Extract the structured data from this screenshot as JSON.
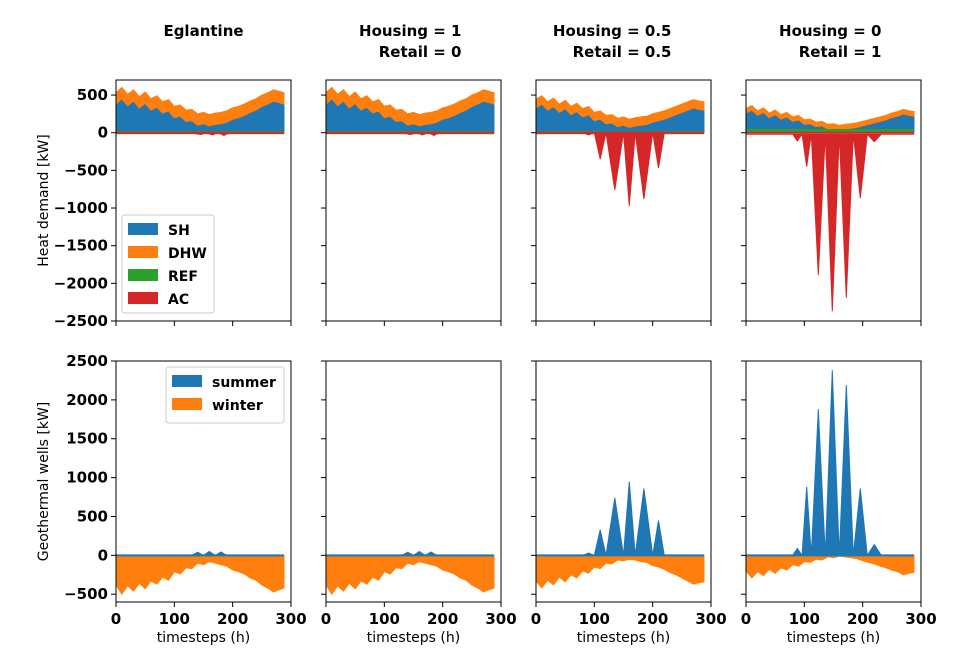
{
  "colors": {
    "SH": "#1f77b4",
    "DHW": "#ff7f0e",
    "REF": "#2ca02c",
    "AC": "#d62728",
    "summer": "#1f77b4",
    "winter": "#ff7f0e"
  },
  "chart_data": [
    {
      "type": "area",
      "row": "heat_demand",
      "title_lines": [
        "Eglantine"
      ],
      "ylabel": "Heat demand [kW]",
      "xlabel": "",
      "xlim": [
        0,
        300
      ],
      "ylim": [
        -2500,
        700
      ],
      "yticks": [
        500,
        0,
        -500,
        -1000,
        -1500,
        -2000,
        -2500
      ],
      "xticks": [
        0,
        100,
        200,
        300
      ],
      "legend": {
        "position": "lower-left",
        "entries": [
          "SH",
          "DHW",
          "REF",
          "AC"
        ]
      },
      "series": [
        {
          "name": "SH",
          "x": [
            0,
            10,
            20,
            30,
            40,
            50,
            60,
            70,
            80,
            90,
            100,
            110,
            120,
            130,
            140,
            150,
            160,
            170,
            180,
            190,
            200,
            210,
            220,
            230,
            240,
            250,
            260,
            270,
            280,
            288
          ],
          "y": [
            380,
            450,
            360,
            420,
            330,
            390,
            300,
            340,
            260,
            290,
            200,
            220,
            150,
            160,
            100,
            120,
            90,
            110,
            120,
            140,
            180,
            200,
            230,
            270,
            300,
            350,
            380,
            420,
            400,
            380
          ]
        },
        {
          "name": "DHW",
          "x": [
            0,
            288
          ],
          "y": [
            150,
            150
          ]
        },
        {
          "name": "REF",
          "x": [
            0,
            288
          ],
          "y": [
            0,
            0
          ]
        },
        {
          "name": "AC",
          "x": [
            0,
            130,
            145,
            155,
            165,
            175,
            185,
            195,
            288
          ],
          "y": [
            0,
            0,
            -25,
            0,
            -30,
            0,
            -35,
            0,
            0
          ]
        }
      ]
    },
    {
      "type": "area",
      "row": "heat_demand",
      "title_lines": [
        "Housing = 1",
        "Retail = 0"
      ],
      "xlim": [
        0,
        300
      ],
      "ylim": [
        -2500,
        700
      ],
      "xticks": [
        0,
        100,
        200,
        300
      ],
      "series": [
        {
          "name": "SH",
          "x": [
            0,
            10,
            20,
            30,
            40,
            50,
            60,
            70,
            80,
            90,
            100,
            110,
            120,
            130,
            140,
            150,
            160,
            170,
            180,
            190,
            200,
            210,
            220,
            230,
            240,
            250,
            260,
            270,
            280,
            288
          ],
          "y": [
            380,
            450,
            360,
            420,
            330,
            390,
            300,
            340,
            260,
            290,
            200,
            220,
            150,
            160,
            100,
            120,
            90,
            110,
            120,
            140,
            180,
            200,
            230,
            270,
            300,
            350,
            380,
            420,
            400,
            380
          ]
        },
        {
          "name": "DHW",
          "x": [
            0,
            288
          ],
          "y": [
            150,
            150
          ]
        },
        {
          "name": "REF",
          "x": [
            0,
            288
          ],
          "y": [
            0,
            0
          ]
        },
        {
          "name": "AC",
          "x": [
            0,
            130,
            145,
            155,
            165,
            175,
            185,
            195,
            288
          ],
          "y": [
            0,
            0,
            -25,
            0,
            -30,
            0,
            -35,
            0,
            0
          ]
        }
      ]
    },
    {
      "type": "area",
      "row": "heat_demand",
      "title_lines": [
        "Housing = 0.5",
        "Retail = 0.5"
      ],
      "xlim": [
        0,
        300
      ],
      "ylim": [
        -2500,
        700
      ],
      "xticks": [
        0,
        100,
        200,
        300
      ],
      "series": [
        {
          "name": "SH",
          "x": [
            0,
            10,
            20,
            30,
            40,
            50,
            60,
            70,
            80,
            90,
            100,
            110,
            120,
            130,
            140,
            150,
            160,
            170,
            180,
            190,
            200,
            210,
            220,
            230,
            240,
            250,
            260,
            270,
            280,
            288
          ],
          "y": [
            330,
            380,
            300,
            350,
            270,
            320,
            240,
            280,
            210,
            240,
            160,
            180,
            120,
            130,
            80,
            100,
            70,
            90,
            100,
            110,
            140,
            160,
            180,
            210,
            240,
            270,
            300,
            330,
            310,
            300
          ]
        },
        {
          "name": "DHW",
          "x": [
            0,
            288
          ],
          "y": [
            110,
            110
          ]
        },
        {
          "name": "REF",
          "x": [
            0,
            288
          ],
          "y": [
            0,
            0
          ]
        },
        {
          "name": "AC",
          "x": [
            0,
            80,
            90,
            100,
            110,
            120,
            135,
            150,
            160,
            170,
            185,
            200,
            210,
            220,
            240,
            288
          ],
          "y": [
            0,
            0,
            -30,
            0,
            -350,
            0,
            -760,
            0,
            -970,
            0,
            -880,
            0,
            -470,
            0,
            0,
            0
          ]
        }
      ]
    },
    {
      "type": "area",
      "row": "heat_demand",
      "title_lines": [
        "Housing = 0",
        "Retail = 1"
      ],
      "xlim": [
        0,
        300
      ],
      "ylim": [
        -2500,
        700
      ],
      "xticks": [
        0,
        100,
        200,
        300
      ],
      "series": [
        {
          "name": "SH",
          "x": [
            0,
            10,
            20,
            30,
            40,
            50,
            60,
            70,
            80,
            90,
            100,
            110,
            120,
            130,
            140,
            150,
            160,
            170,
            180,
            190,
            200,
            210,
            220,
            230,
            240,
            250,
            260,
            270,
            280,
            288
          ],
          "y": [
            260,
            300,
            230,
            270,
            200,
            240,
            180,
            210,
            150,
            170,
            110,
            120,
            80,
            90,
            50,
            60,
            40,
            50,
            60,
            70,
            90,
            110,
            130,
            150,
            170,
            200,
            220,
            250,
            230,
            220
          ]
        },
        {
          "name": "DHW",
          "x": [
            0,
            288
          ],
          "y": [
            60,
            60
          ]
        },
        {
          "name": "REF",
          "x": [
            0,
            288
          ],
          "y": [
            30,
            30
          ]
        },
        {
          "name": "AC",
          "x": [
            0,
            80,
            88,
            96,
            104,
            112,
            124,
            136,
            148,
            160,
            172,
            184,
            196,
            208,
            220,
            232,
            240,
            288
          ],
          "y": [
            -20,
            -20,
            -110,
            -20,
            -450,
            -20,
            -1890,
            -20,
            -2370,
            -20,
            -2190,
            -20,
            -870,
            -20,
            -120,
            -20,
            -20,
            -20
          ]
        }
      ]
    },
    {
      "type": "area",
      "row": "geothermal",
      "ylabel": "Geothermal wells [kW]",
      "xlabel": "timesteps (h)",
      "xlim": [
        0,
        300
      ],
      "ylim": [
        -600,
        2500
      ],
      "yticks": [
        2500,
        2000,
        1500,
        1000,
        500,
        0,
        -500
      ],
      "xticks": [
        0,
        100,
        200,
        300
      ],
      "legend": {
        "position": "upper-right",
        "entries": [
          "summer",
          "winter"
        ]
      },
      "series": [
        {
          "name": "summer",
          "x": [
            0,
            130,
            140,
            150,
            160,
            170,
            180,
            190,
            288
          ],
          "y": [
            0,
            0,
            40,
            0,
            50,
            0,
            45,
            0,
            0
          ]
        },
        {
          "name": "winter",
          "x": [
            0,
            10,
            20,
            30,
            40,
            50,
            60,
            70,
            80,
            90,
            100,
            110,
            120,
            130,
            140,
            150,
            160,
            170,
            180,
            190,
            200,
            210,
            220,
            230,
            240,
            250,
            260,
            270,
            280,
            288
          ],
          "y": [
            -380,
            -500,
            -390,
            -460,
            -360,
            -430,
            -330,
            -370,
            -280,
            -320,
            -210,
            -240,
            -160,
            -170,
            -100,
            -120,
            -80,
            -100,
            -120,
            -140,
            -190,
            -210,
            -240,
            -290,
            -320,
            -380,
            -420,
            -470,
            -440,
            -420
          ]
        }
      ]
    },
    {
      "type": "area",
      "row": "geothermal",
      "xlabel": "timesteps (h)",
      "xlim": [
        0,
        300
      ],
      "ylim": [
        -600,
        2500
      ],
      "xticks": [
        0,
        100,
        200,
        300
      ],
      "series": [
        {
          "name": "summer",
          "x": [
            0,
            130,
            140,
            150,
            160,
            170,
            180,
            190,
            288
          ],
          "y": [
            0,
            0,
            40,
            0,
            50,
            0,
            45,
            0,
            0
          ]
        },
        {
          "name": "winter",
          "x": [
            0,
            10,
            20,
            30,
            40,
            50,
            60,
            70,
            80,
            90,
            100,
            110,
            120,
            130,
            140,
            150,
            160,
            170,
            180,
            190,
            200,
            210,
            220,
            230,
            240,
            250,
            260,
            270,
            280,
            288
          ],
          "y": [
            -380,
            -500,
            -390,
            -460,
            -360,
            -430,
            -330,
            -370,
            -280,
            -320,
            -210,
            -240,
            -160,
            -170,
            -100,
            -120,
            -80,
            -100,
            -120,
            -140,
            -190,
            -210,
            -240,
            -290,
            -320,
            -380,
            -420,
            -470,
            -440,
            -420
          ]
        }
      ]
    },
    {
      "type": "area",
      "row": "geothermal",
      "xlabel": "timesteps (h)",
      "xlim": [
        0,
        300
      ],
      "ylim": [
        -600,
        2500
      ],
      "xticks": [
        0,
        100,
        200,
        300
      ],
      "series": [
        {
          "name": "summer",
          "x": [
            0,
            80,
            90,
            100,
            110,
            120,
            135,
            150,
            160,
            170,
            185,
            200,
            210,
            220,
            240,
            288
          ],
          "y": [
            0,
            0,
            30,
            0,
            330,
            0,
            740,
            0,
            950,
            0,
            860,
            0,
            450,
            0,
            0,
            0
          ]
        },
        {
          "name": "winter",
          "x": [
            0,
            10,
            20,
            30,
            40,
            50,
            60,
            70,
            80,
            90,
            100,
            110,
            120,
            130,
            140,
            150,
            160,
            170,
            180,
            190,
            200,
            210,
            220,
            230,
            240,
            250,
            260,
            270,
            280,
            288
          ],
          "y": [
            -330,
            -420,
            -320,
            -380,
            -280,
            -340,
            -250,
            -290,
            -200,
            -230,
            -150,
            -170,
            -100,
            -110,
            -60,
            -70,
            -50,
            -60,
            -80,
            -90,
            -130,
            -150,
            -180,
            -220,
            -250,
            -290,
            -330,
            -370,
            -350,
            -340
          ]
        }
      ]
    },
    {
      "type": "area",
      "row": "geothermal",
      "xlabel": "timesteps (h)",
      "xlim": [
        0,
        300
      ],
      "ylim": [
        -600,
        2500
      ],
      "xticks": [
        0,
        100,
        200,
        300
      ],
      "series": [
        {
          "name": "summer",
          "x": [
            0,
            80,
            88,
            96,
            104,
            112,
            124,
            136,
            148,
            160,
            172,
            184,
            196,
            208,
            220,
            232,
            240,
            288
          ],
          "y": [
            0,
            0,
            90,
            0,
            880,
            0,
            1880,
            0,
            2380,
            0,
            2190,
            0,
            860,
            0,
            140,
            0,
            0,
            0
          ]
        },
        {
          "name": "winter",
          "x": [
            0,
            10,
            20,
            30,
            40,
            50,
            60,
            70,
            80,
            90,
            100,
            110,
            120,
            130,
            140,
            150,
            160,
            170,
            180,
            190,
            200,
            210,
            220,
            230,
            240,
            250,
            260,
            270,
            280,
            288
          ],
          "y": [
            -200,
            -290,
            -210,
            -260,
            -180,
            -230,
            -160,
            -190,
            -120,
            -140,
            -80,
            -90,
            -50,
            -60,
            -20,
            -30,
            -10,
            -20,
            -30,
            -40,
            -70,
            -90,
            -110,
            -140,
            -160,
            -190,
            -210,
            -250,
            -230,
            -220
          ]
        }
      ]
    }
  ]
}
